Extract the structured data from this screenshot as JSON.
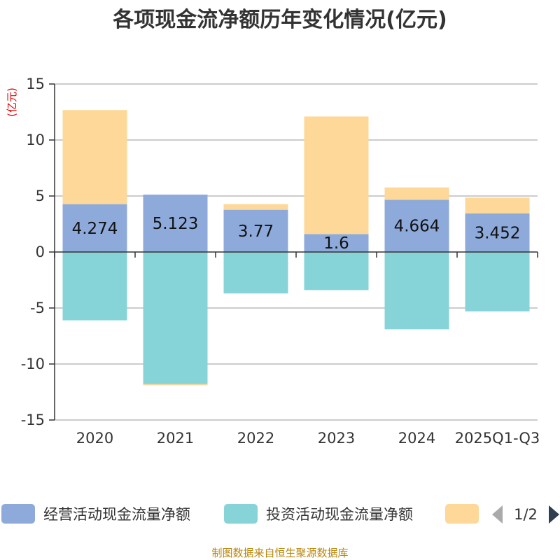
{
  "title": "各项现金流净额历年变化情况(亿元)",
  "unit_label": "(亿元)",
  "source": "制图数据来自恒生聚源数据库",
  "colors": {
    "operating": "#8eaadb",
    "investing": "#86d4d8",
    "financing": "#fdd898",
    "axis": "#333333",
    "grid": "#bbbbbb",
    "pager_prev": "#aaaaaa",
    "pager_next": "#2f3f4f"
  },
  "legend": {
    "items": [
      "经营活动现金流量净额",
      "投资活动现金流量净额",
      ""
    ],
    "page": "1/2"
  },
  "chart_data": {
    "type": "bar",
    "stacked": true,
    "categories": [
      "2020",
      "2021",
      "2022",
      "2023",
      "2024",
      "2025Q1-Q3"
    ],
    "series": [
      {
        "name": "经营活动现金流量净额",
        "key": "operating",
        "values": [
          4.274,
          5.123,
          3.77,
          1.6,
          4.664,
          3.452
        ],
        "labels": [
          "4.274",
          "5.123",
          "3.77",
          "1.6",
          "4.664",
          "3.452"
        ]
      },
      {
        "name": "投资活动现金流量净额",
        "key": "investing",
        "values": [
          -6.1,
          -11.8,
          -3.7,
          -3.4,
          -6.9,
          -5.3
        ]
      },
      {
        "name": "",
        "key": "financing",
        "values": [
          8.4,
          -0.1,
          0.5,
          10.5,
          1.1,
          1.4
        ]
      }
    ],
    "yticks": [
      "15",
      "10",
      "5",
      "0",
      "-5",
      "-10",
      "-15"
    ],
    "ylim": [
      -15,
      15
    ],
    "grid": true
  }
}
